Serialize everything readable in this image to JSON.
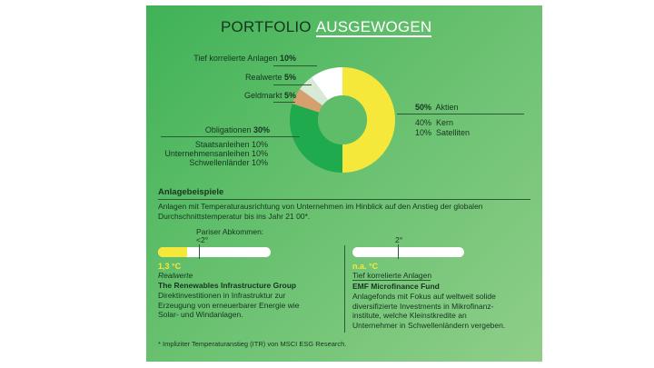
{
  "title": {
    "part1": "PORTFOLIO",
    "part2": "AUSGEWOGEN"
  },
  "chart_data": {
    "type": "pie",
    "categories": [
      "Aktien",
      "Obligationen",
      "Geldmarkt",
      "Realwerte",
      "Tief korrelierte Anlagen"
    ],
    "values": [
      50,
      30,
      5,
      5,
      10
    ],
    "colors": [
      "#f6e83a",
      "#1faa4e",
      "#d6a06e",
      "#d8ead6",
      "#ffffff"
    ],
    "labels": [
      {
        "name": "Tief korrelierte Anlagen",
        "value": "10%"
      },
      {
        "name": "Realwerte",
        "value": "5%"
      },
      {
        "name": "Geldmarkt",
        "value": "5%"
      },
      {
        "name": "Obligationen",
        "value": "30%"
      },
      {
        "name": "Aktien",
        "value": "50%"
      }
    ],
    "sub_obligationen": [
      {
        "name": "Staatsanleihen",
        "value": "10%"
      },
      {
        "name": "Unternehmensanleihen",
        "value": "10%"
      },
      {
        "name": "Schwellenländer",
        "value": "10%"
      }
    ],
    "sub_aktien": [
      {
        "name": "Kern",
        "value": "40%"
      },
      {
        "name": "Satelliten",
        "value": "10%"
      }
    ]
  },
  "examples": {
    "heading": "Anlagebeispiele",
    "description": "Anlagen mit Temperaturausrichtung von Unternehmen im Hinblick auf den Anstieg der globalen Durchschnittstemperatur bis ins Jahr 21 00*.",
    "paris_label": "Pariser Abkommen:",
    "paris_value": "<2°",
    "left": {
      "temperature": "1,3 °C",
      "fill_fraction": 0.26,
      "category": "Realwerte",
      "name": "The Renewables Infrastructure Group",
      "text": "Direktinvestitionen in Infrastruktur zur Erzeugung von erneuerbarer Energie wie Solar- und Windanlagen."
    },
    "right": {
      "scale_label": "2°",
      "temperature": "n.a. °C",
      "fill_fraction": 0,
      "category": "Tief korrelierte Anlagen",
      "name": "EMF Microfinance Fund",
      "text": "Anlagefonds mit Fokus auf weltweit solide diversifizierte Investments in Mikrofinanz-institute, welche Kleinstkredite an Unternehmer in Schwellenländern vergeben."
    }
  },
  "footnote": "* Impliziter Temperaturanstieg (ITR) von MSCI ESG Research."
}
